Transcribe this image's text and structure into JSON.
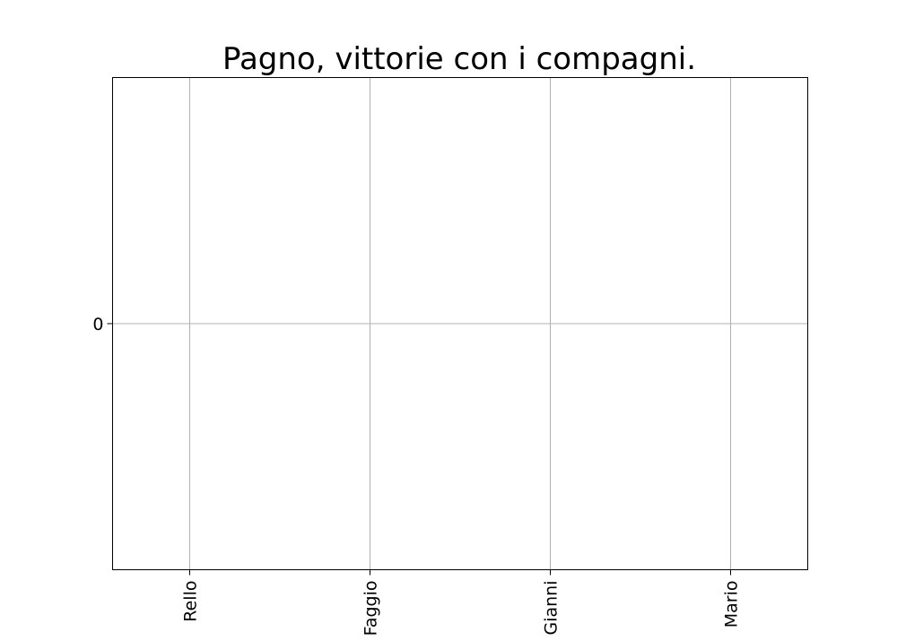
{
  "chart_data": {
    "type": "bar",
    "title": "Pagno, vittorie con i compagni.",
    "xlabel": "",
    "ylabel": "",
    "categories": [
      "Rello",
      "Faggio",
      "Gianni",
      "Mario"
    ],
    "values": [
      0,
      0,
      0,
      0
    ],
    "yticks": [
      0
    ],
    "ylim": [
      -1,
      1
    ],
    "grid": true,
    "legend": "none",
    "colors": {
      "grid": "#b0b0b0",
      "axes": "#000000",
      "background": "#ffffff"
    }
  }
}
